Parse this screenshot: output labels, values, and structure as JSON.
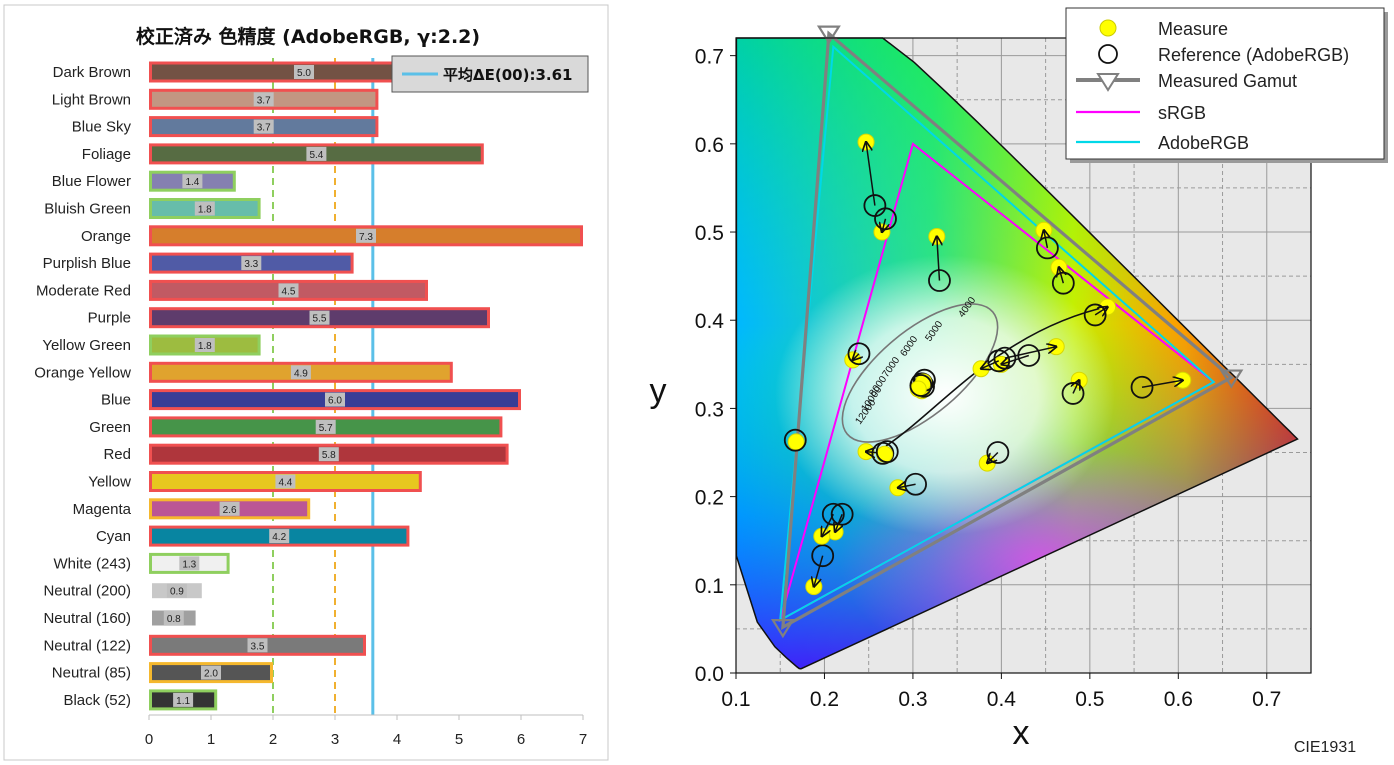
{
  "chart_data": [
    {
      "type": "bar",
      "title": "校正済み 色精度 (AdobeRGB, γ:2.2)",
      "xlim": [
        0,
        7
      ],
      "x_ticks": [
        "0",
        "1",
        "2",
        "3",
        "4",
        "5",
        "6",
        "7"
      ],
      "orientation": "horizontal",
      "grid": false,
      "reference_lines": [
        {
          "value": 2,
          "color": "#8fcf5f",
          "style": "dashed"
        },
        {
          "value": 3,
          "color": "#f0b030",
          "style": "dashed"
        },
        {
          "value": 3.61,
          "color": "#5bc0e8",
          "style": "solid"
        }
      ],
      "average_label": "平均ΔE(00):3.61",
      "categories": [
        {
          "name": "Dark Brown",
          "value": 5.0,
          "label": "5.0",
          "fill": "#735244",
          "border": "#f05050"
        },
        {
          "name": "Light Brown",
          "value": 3.7,
          "label": "3.7",
          "fill": "#c29682",
          "border": "#f05050"
        },
        {
          "name": "Blue Sky",
          "value": 3.7,
          "label": "3.7",
          "fill": "#627a9d",
          "border": "#f05050"
        },
        {
          "name": "Foliage",
          "value": 5.4,
          "label": "5.4",
          "fill": "#576c43",
          "border": "#f05050"
        },
        {
          "name": "Blue Flower",
          "value": 1.4,
          "label": "1.4",
          "fill": "#8580b1",
          "border": "#8fcf5f"
        },
        {
          "name": "Bluish Green",
          "value": 1.8,
          "label": "1.8",
          "fill": "#67bdaa",
          "border": "#8fcf5f"
        },
        {
          "name": "Orange",
          "value": 7.3,
          "label": "7.3",
          "fill": "#d67e2c",
          "border": "#f05050"
        },
        {
          "name": "Purplish Blue",
          "value": 3.3,
          "label": "3.3",
          "fill": "#505ba6",
          "border": "#f05050"
        },
        {
          "name": "Moderate Red",
          "value": 4.5,
          "label": "4.5",
          "fill": "#c15a63",
          "border": "#f05050"
        },
        {
          "name": "Purple",
          "value": 5.5,
          "label": "5.5",
          "fill": "#5e3c6c",
          "border": "#f05050"
        },
        {
          "name": "Yellow Green",
          "value": 1.8,
          "label": "1.8",
          "fill": "#9dbc40",
          "border": "#8fcf5f"
        },
        {
          "name": "Orange Yellow",
          "value": 4.9,
          "label": "4.9",
          "fill": "#e0a32e",
          "border": "#f05050"
        },
        {
          "name": "Blue",
          "value": 6.0,
          "label": "6.0",
          "fill": "#383d96",
          "border": "#f05050"
        },
        {
          "name": "Green",
          "value": 5.7,
          "label": "5.7",
          "fill": "#469449",
          "border": "#f05050"
        },
        {
          "name": "Red",
          "value": 5.8,
          "label": "5.8",
          "fill": "#af363c",
          "border": "#f05050"
        },
        {
          "name": "Yellow",
          "value": 4.4,
          "label": "4.4",
          "fill": "#e7c71f",
          "border": "#f05050"
        },
        {
          "name": "Magenta",
          "value": 2.6,
          "label": "2.6",
          "fill": "#bb5695",
          "border": "#f5b82e"
        },
        {
          "name": "Cyan",
          "value": 4.2,
          "label": "4.2",
          "fill": "#0885a1",
          "border": "#f05050"
        },
        {
          "name": "White (243)",
          "value": 1.3,
          "label": "1.3",
          "fill": "#f0f0f0",
          "border": "#8fcf5f"
        },
        {
          "name": "Neutral (200)",
          "value": 0.9,
          "label": "0.9",
          "fill": "#c8c8c8",
          "border": ""
        },
        {
          "name": "Neutral (160)",
          "value": 0.8,
          "label": "0.8",
          "fill": "#a0a0a0",
          "border": ""
        },
        {
          "name": "Neutral (122)",
          "value": 3.5,
          "label": "3.5",
          "fill": "#7a7a7a",
          "border": "#f05050"
        },
        {
          "name": "Neutral (85)",
          "value": 2.0,
          "label": "2.0",
          "fill": "#555555",
          "border": "#f5b82e"
        },
        {
          "name": "Black (52)",
          "value": 1.1,
          "label": "1.1",
          "fill": "#343434",
          "border": "#8fcf5f"
        }
      ]
    },
    {
      "type": "scatter",
      "title": "",
      "xlabel": "x",
      "ylabel": "y",
      "xlim": [
        0.1,
        0.75
      ],
      "ylim": [
        0.0,
        0.72
      ],
      "x_ticks": [
        "0.1",
        "0.2",
        "0.3",
        "0.4",
        "0.5",
        "0.6",
        "0.7"
      ],
      "y_ticks": [
        "0.0",
        "0.1",
        "0.2",
        "0.3",
        "0.4",
        "0.5",
        "0.6",
        "0.7"
      ],
      "grid": true,
      "legend_position": "top-right",
      "footer": "CIE1931",
      "legend": [
        "Measure",
        "Reference (AdobeRGB)",
        "Measured Gamut",
        "sRGB",
        "AdobeRGB"
      ],
      "series": [
        {
          "name": "sRGB",
          "color": "#ff00ff",
          "points": [
            [
              0.64,
              0.33
            ],
            [
              0.3,
              0.6
            ],
            [
              0.15,
              0.06
            ]
          ]
        },
        {
          "name": "AdobeRGB",
          "color": "#00d8e8",
          "points": [
            [
              0.64,
              0.33
            ],
            [
              0.21,
              0.71
            ],
            [
              0.15,
              0.06
            ]
          ]
        },
        {
          "name": "Measured Gamut",
          "color": "#808080",
          "points": [
            [
              0.66,
              0.335
            ],
            [
              0.205,
              0.725
            ],
            [
              0.153,
              0.052
            ]
          ]
        }
      ],
      "patches": [
        {
          "measure": [
            0.4,
            0.35
          ],
          "ref": [
            0.431,
            0.36
          ]
        },
        {
          "measure": [
            0.377,
            0.345
          ],
          "ref": [
            0.397,
            0.354
          ]
        },
        {
          "measure": [
            0.247,
            0.251
          ],
          "ref": [
            0.266,
            0.249
          ]
        },
        {
          "measure": [
            0.232,
            0.355
          ],
          "ref": [
            0.239,
            0.362
          ]
        },
        {
          "measure": [
            0.268,
            0.248
          ],
          "ref": [
            0.271,
            0.251
          ]
        },
        {
          "measure": [
            0.247,
            0.602
          ],
          "ref": [
            0.257,
            0.53
          ]
        },
        {
          "measure": [
            0.52,
            0.415
          ],
          "ref": [
            0.506,
            0.406
          ]
        },
        {
          "measure": [
            0.212,
            0.16
          ],
          "ref": [
            0.22,
            0.18
          ]
        },
        {
          "measure": [
            0.462,
            0.37
          ],
          "ref": [
            0.404,
            0.357
          ]
        },
        {
          "measure": [
            0.283,
            0.21
          ],
          "ref": [
            0.303,
            0.214
          ]
        },
        {
          "measure": [
            0.327,
            0.495
          ],
          "ref": [
            0.33,
            0.445
          ]
        },
        {
          "measure": [
            0.465,
            0.46
          ],
          "ref": [
            0.47,
            0.442
          ]
        },
        {
          "measure": [
            0.188,
            0.098
          ],
          "ref": [
            0.198,
            0.133
          ]
        },
        {
          "measure": [
            0.265,
            0.5
          ],
          "ref": [
            0.269,
            0.515
          ]
        },
        {
          "measure": [
            0.605,
            0.332
          ],
          "ref": [
            0.559,
            0.324
          ]
        },
        {
          "measure": [
            0.448,
            0.502
          ],
          "ref": [
            0.452,
            0.482
          ]
        },
        {
          "measure": [
            0.384,
            0.238
          ],
          "ref": [
            0.396,
            0.25
          ]
        },
        {
          "measure": [
            0.197,
            0.155
          ],
          "ref": [
            0.21,
            0.18
          ]
        },
        {
          "measure": [
            0.31,
            0.325
          ],
          "ref": [
            0.31,
            0.328
          ]
        },
        {
          "measure": [
            0.31,
            0.32
          ],
          "ref": [
            0.312,
            0.325
          ]
        },
        {
          "measure": [
            0.312,
            0.33
          ],
          "ref": [
            0.313,
            0.332
          ]
        },
        {
          "measure": [
            0.306,
            0.322
          ],
          "ref": [
            0.309,
            0.326
          ]
        },
        {
          "measure": [
            0.168,
            0.262
          ],
          "ref": [
            0.167,
            0.264
          ]
        },
        {
          "measure": [
            0.488,
            0.332
          ],
          "ref": [
            0.481,
            0.317
          ]
        }
      ],
      "cct_labels": [
        "4000",
        "5000",
        "6000",
        "7000",
        "8000",
        "10000",
        "12000"
      ]
    }
  ]
}
